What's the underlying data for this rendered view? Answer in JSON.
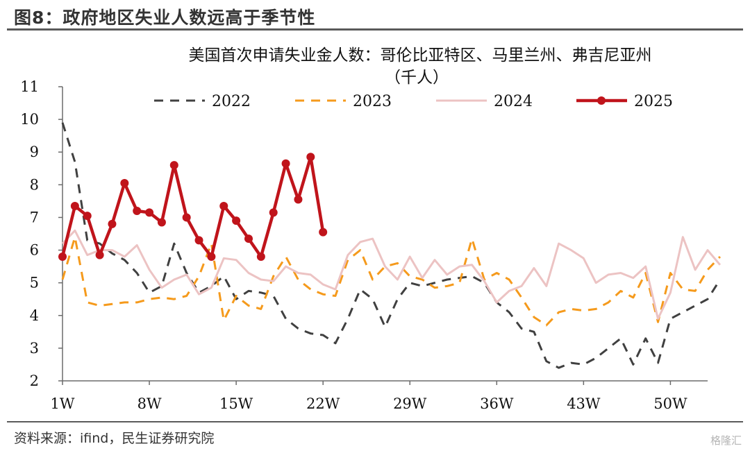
{
  "figure_title": "图8：政府地区失业人数远高于季节性",
  "source": "资料来源：ifind，民生证券研究院",
  "watermark": "格隆汇",
  "chart_data": {
    "type": "line",
    "title": "美国首次申请失业金人数：哥伦比亚特区、马里兰州、弗吉尼亚州",
    "subtitle": "（千人）",
    "xlabel": "",
    "ylabel": "",
    "x_ticks": [
      "1W",
      "8W",
      "15W",
      "22W",
      "29W",
      "36W",
      "43W",
      "50W"
    ],
    "xlim": [
      1,
      53
    ],
    "ylim": [
      2,
      11
    ],
    "y_ticks": [
      2,
      3,
      4,
      5,
      6,
      7,
      8,
      9,
      10,
      11
    ],
    "grid": false,
    "legend_position": "top",
    "series": [
      {
        "name": "2022",
        "style": "dashed",
        "color": "#404040",
        "values": [
          9.9,
          8.7,
          6.3,
          6.2,
          5.9,
          5.7,
          5.3,
          4.7,
          4.9,
          6.2,
          5.3,
          4.7,
          4.9,
          5.2,
          4.5,
          4.75,
          4.7,
          4.6,
          3.9,
          3.6,
          3.45,
          3.4,
          3.15,
          3.9,
          4.8,
          4.5,
          3.65,
          4.5,
          5.0,
          4.9,
          5.0,
          5.1,
          5.15,
          5.2,
          5.0,
          4.4,
          4.1,
          3.6,
          3.5,
          2.6,
          2.4,
          2.55,
          2.5,
          2.7,
          3.0,
          3.3,
          2.5,
          3.3,
          2.55,
          3.9,
          4.1,
          4.3,
          4.5,
          5.1
        ]
      },
      {
        "name": "2023",
        "style": "dashed",
        "color": "#f59a1c",
        "values": [
          5.1,
          6.4,
          4.4,
          4.3,
          4.35,
          4.4,
          4.4,
          4.5,
          4.55,
          4.5,
          4.6,
          5.2,
          6.2,
          3.85,
          4.6,
          4.3,
          4.2,
          5.2,
          5.8,
          5.1,
          4.8,
          4.65,
          4.6,
          5.7,
          6.0,
          5.1,
          5.5,
          5.6,
          5.2,
          5.1,
          4.85,
          4.9,
          5.0,
          6.35,
          5.1,
          5.3,
          5.1,
          4.55,
          3.95,
          3.7,
          4.1,
          4.2,
          4.15,
          4.2,
          4.4,
          4.75,
          4.55,
          5.3,
          3.8,
          5.3,
          4.8,
          4.75,
          5.4,
          5.8
        ]
      },
      {
        "name": "2024",
        "style": "solid",
        "color": "#ecc3c3",
        "values": [
          6.2,
          6.6,
          5.85,
          6.0,
          6.0,
          5.8,
          6.15,
          5.4,
          4.85,
          5.1,
          5.25,
          4.65,
          4.85,
          5.75,
          5.7,
          5.3,
          5.1,
          5.05,
          5.5,
          5.3,
          5.25,
          4.95,
          4.8,
          5.85,
          6.25,
          6.35,
          5.5,
          5.1,
          5.8,
          5.15,
          5.7,
          5.25,
          5.5,
          5.55,
          5.05,
          4.4,
          4.75,
          4.9,
          5.45,
          4.9,
          6.2,
          6.0,
          5.75,
          5.0,
          5.25,
          5.3,
          5.15,
          5.5,
          3.9,
          4.7,
          6.4,
          5.4,
          6.0,
          5.55
        ]
      },
      {
        "name": "2025",
        "style": "solid-marker",
        "color": "#c0141b",
        "values": [
          5.8,
          7.35,
          7.05,
          5.85,
          6.8,
          8.05,
          7.2,
          7.15,
          6.85,
          8.6,
          7.0,
          6.3,
          5.8,
          7.35,
          6.9,
          6.35,
          5.8,
          7.15,
          8.65,
          7.55,
          8.85,
          6.55
        ]
      }
    ]
  }
}
